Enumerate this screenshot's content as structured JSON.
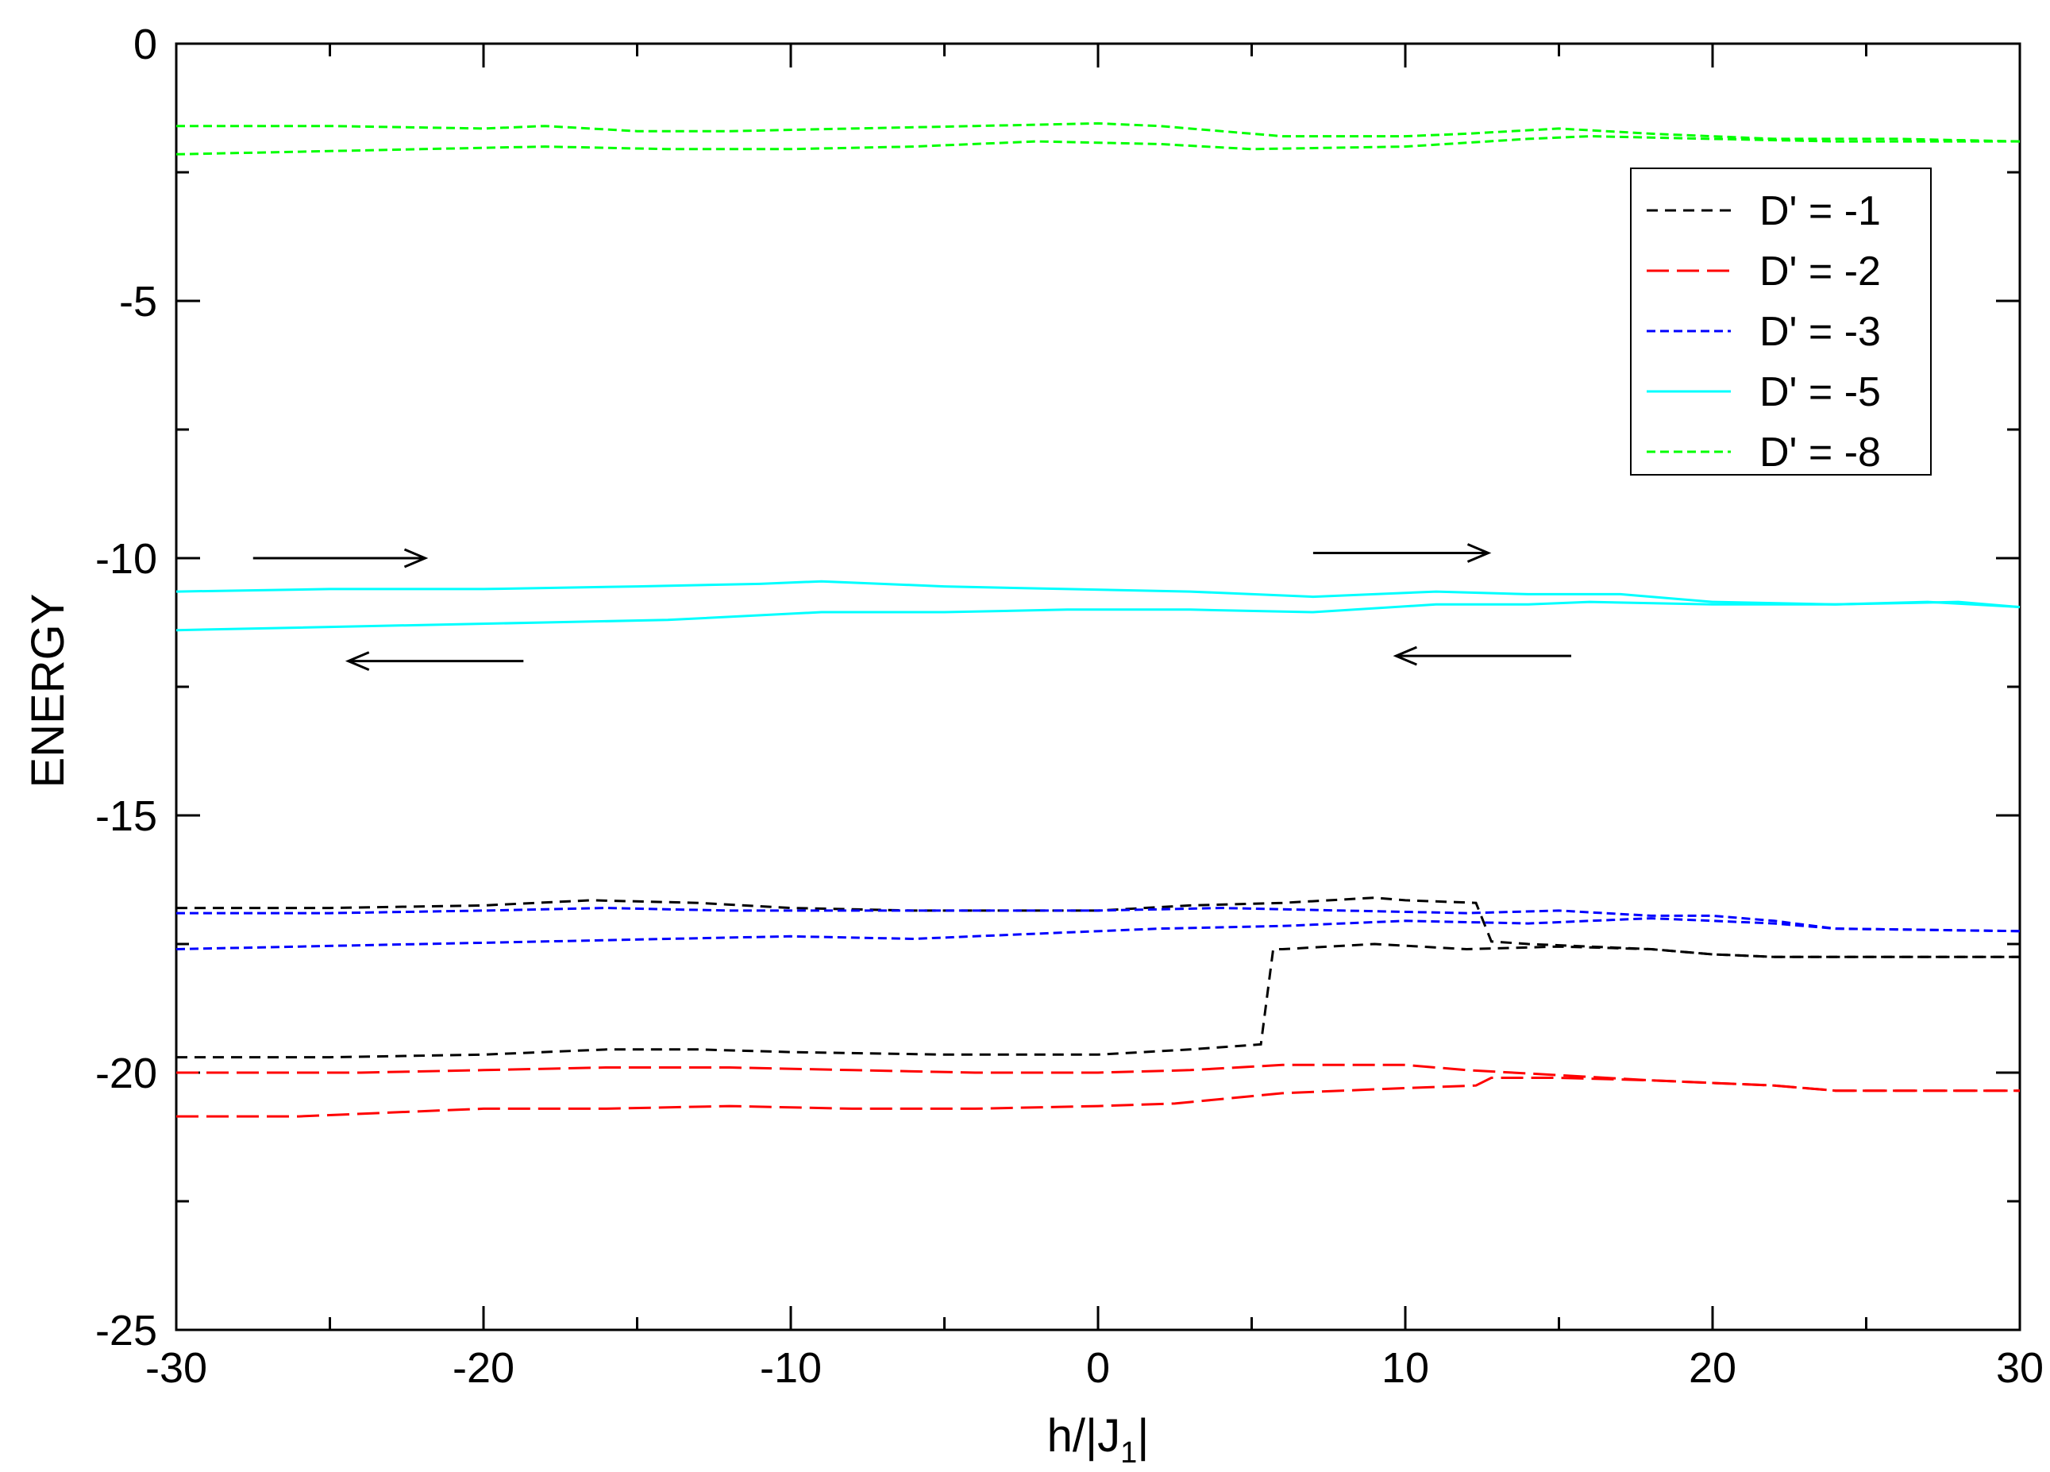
{
  "chart_data": {
    "type": "line",
    "title": "",
    "xlabel": "h/|J",
    "xlabel_sub": "1",
    "xlabel_suffix": "|",
    "ylabel": "ENERGY",
    "xlim": [
      -30,
      30
    ],
    "ylim": [
      -25,
      0
    ],
    "x_ticks": [
      -30,
      -20,
      -10,
      0,
      10,
      20,
      30
    ],
    "y_ticks": [
      -25,
      -20,
      -15,
      -10,
      -5,
      0
    ],
    "x_tick_labels": [
      "-30",
      "-20",
      "-10",
      "0",
      "10",
      "20",
      "30"
    ],
    "y_tick_labels": [
      "-25",
      "-20",
      "-15",
      "-10",
      "-5",
      "0"
    ],
    "grid": false,
    "legend_position": "top-right",
    "series": [
      {
        "name": "D' = -1",
        "color": "#000000",
        "dash": "dashed",
        "branches": [
          {
            "x": [
              -30,
              -25,
              -20,
              -16.5,
              -13,
              -10,
              -6,
              -3,
              0,
              3,
              6,
              9,
              10,
              12.3,
              12.8,
              14,
              16,
              18,
              20,
              22,
              30
            ],
            "y": [
              -16.8,
              -16.8,
              -16.75,
              -16.65,
              -16.7,
              -16.8,
              -16.85,
              -16.85,
              -16.85,
              -16.75,
              -16.7,
              -16.6,
              -16.65,
              -16.7,
              -17.45,
              -17.5,
              -17.55,
              -17.6,
              -17.7,
              -17.75,
              -17.75
            ]
          },
          {
            "x": [
              -30,
              -25,
              -20,
              -16,
              -13,
              -10,
              -5,
              0,
              3,
              5.3,
              5.7,
              6,
              9,
              12,
              15,
              18,
              20,
              22,
              30
            ],
            "y": [
              -19.7,
              -19.7,
              -19.65,
              -19.55,
              -19.55,
              -19.6,
              -19.65,
              -19.65,
              -19.55,
              -19.45,
              -17.6,
              -17.6,
              -17.5,
              -17.6,
              -17.55,
              -17.6,
              -17.7,
              -17.75,
              -17.75
            ]
          }
        ]
      },
      {
        "name": "D' = -2",
        "color": "#ff0000",
        "dash": "longdash",
        "branches": [
          {
            "x": [
              -30,
              -24,
              -20,
              -16,
              -12,
              -8,
              -4,
              0,
              3,
              6,
              8,
              10,
              12,
              15,
              18,
              20,
              22,
              24,
              26,
              30
            ],
            "y": [
              -20.0,
              -20.0,
              -19.95,
              -19.9,
              -19.9,
              -19.95,
              -20.0,
              -20.0,
              -19.95,
              -19.85,
              -19.85,
              -19.85,
              -19.95,
              -20.05,
              -20.15,
              -20.2,
              -20.25,
              -20.35,
              -20.35,
              -20.35
            ]
          },
          {
            "x": [
              -30,
              -26,
              -22,
              -20,
              -16,
              -12,
              -8,
              -4,
              0,
              2.5,
              6,
              10,
              12.3,
              12.8,
              15,
              18,
              20,
              22,
              24,
              30
            ],
            "y": [
              -20.85,
              -20.85,
              -20.75,
              -20.7,
              -20.7,
              -20.65,
              -20.7,
              -20.7,
              -20.65,
              -20.6,
              -20.4,
              -20.3,
              -20.25,
              -20.1,
              -20.1,
              -20.15,
              -20.2,
              -20.25,
              -20.35,
              -20.35
            ]
          }
        ]
      },
      {
        "name": "D' = -3",
        "color": "#0000ff",
        "dash": "shortdash",
        "branches": [
          {
            "x": [
              -30,
              -25,
              -20,
              -16,
              -12,
              -8,
              -4,
              0,
              4,
              8,
              12,
              15,
              18,
              20,
              22,
              24,
              30
            ],
            "y": [
              -16.9,
              -16.9,
              -16.85,
              -16.8,
              -16.85,
              -16.85,
              -16.85,
              -16.85,
              -16.8,
              -16.85,
              -16.9,
              -16.85,
              -16.95,
              -16.95,
              -17.05,
              -17.2,
              -17.25
            ]
          },
          {
            "x": [
              -30,
              -26,
              -22,
              -18,
              -14,
              -10,
              -6,
              -2,
              2,
              6,
              10,
              14,
              18,
              20,
              22,
              24,
              30
            ],
            "y": [
              -17.6,
              -17.55,
              -17.5,
              -17.45,
              -17.4,
              -17.35,
              -17.4,
              -17.3,
              -17.2,
              -17.15,
              -17.05,
              -17.1,
              -17.0,
              -17.05,
              -17.1,
              -17.2,
              -17.25
            ]
          }
        ]
      },
      {
        "name": "D' = -5",
        "color": "#00ffff",
        "dash": "solid",
        "branches": [
          {
            "x": [
              -30,
              -25,
              -20,
              -15,
              -11,
              -9,
              -5,
              -1,
              3,
              7,
              11,
              14,
              17,
              20,
              24,
              27,
              30
            ],
            "y": [
              -10.65,
              -10.6,
              -10.6,
              -10.55,
              -10.5,
              -10.45,
              -10.55,
              -10.6,
              -10.65,
              -10.75,
              -10.65,
              -10.7,
              -10.7,
              -10.85,
              -10.9,
              -10.85,
              -10.95
            ]
          },
          {
            "x": [
              -30,
              -26,
              -22,
              -18,
              -14,
              -9,
              -5,
              -1,
              3,
              7,
              11,
              14,
              16,
              20,
              24,
              28,
              30
            ],
            "y": [
              -11.4,
              -11.35,
              -11.3,
              -11.25,
              -11.2,
              -11.05,
              -11.05,
              -11.0,
              -11.0,
              -11.05,
              -10.9,
              -10.9,
              -10.85,
              -10.9,
              -10.9,
              -10.85,
              -10.95
            ]
          }
        ]
      },
      {
        "name": "D' = -8",
        "color": "#00ff00",
        "dash": "shortdash",
        "branches": [
          {
            "x": [
              -30,
              -25,
              -20,
              -18,
              -15,
              -12,
              -8,
              -4,
              0,
              2,
              6,
              10,
              12,
              15,
              18,
              22,
              26,
              30
            ],
            "y": [
              -1.6,
              -1.6,
              -1.65,
              -1.6,
              -1.7,
              -1.7,
              -1.65,
              -1.6,
              -1.55,
              -1.6,
              -1.8,
              -1.8,
              -1.75,
              -1.65,
              -1.75,
              -1.85,
              -1.85,
              -1.9
            ]
          },
          {
            "x": [
              -30,
              -26,
              -22,
              -18,
              -14,
              -10,
              -6,
              -2,
              2,
              5,
              10,
              14,
              16,
              20,
              24,
              28,
              30
            ],
            "y": [
              -2.15,
              -2.1,
              -2.05,
              -2.0,
              -2.05,
              -2.05,
              -2.0,
              -1.9,
              -1.95,
              -2.05,
              -2.0,
              -1.85,
              -1.8,
              -1.85,
              -1.9,
              -1.9,
              -1.9
            ]
          }
        ]
      }
    ],
    "annotations": [
      {
        "type": "arrow",
        "direction": "right",
        "from": [
          -27.5,
          -10.0
        ],
        "to": [
          -21.9,
          -10.0
        ]
      },
      {
        "type": "arrow",
        "direction": "left",
        "from": [
          -18.7,
          -12.0
        ],
        "to": [
          -24.4,
          -12.0
        ]
      },
      {
        "type": "arrow",
        "direction": "right",
        "from": [
          7.0,
          -9.9
        ],
        "to": [
          12.7,
          -9.9
        ]
      },
      {
        "type": "arrow",
        "direction": "left",
        "from": [
          15.4,
          -11.9
        ],
        "to": [
          9.7,
          -11.9
        ]
      }
    ]
  }
}
